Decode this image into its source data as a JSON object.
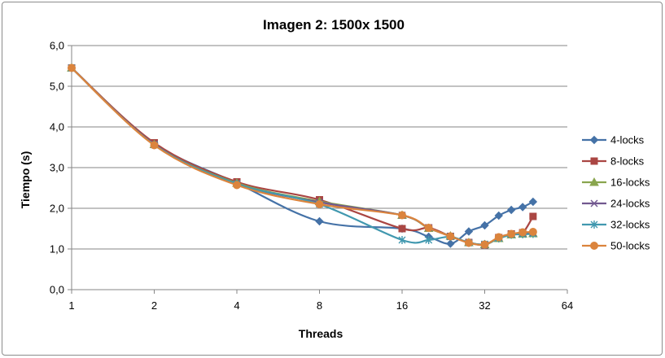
{
  "chart_data": {
    "type": "line",
    "title": "Imagen 2: 1500x 1500",
    "xlabel": "Threads",
    "ylabel": "Tiempo (s)",
    "x_scale": "log2",
    "xlim": [
      1,
      64
    ],
    "ylim": [
      0,
      6
    ],
    "x_ticks": [
      "1",
      "2",
      "4",
      "8",
      "16",
      "32",
      "64"
    ],
    "y_ticks": [
      "0,0",
      "1,0",
      "2,0",
      "3,0",
      "4,0",
      "5,0",
      "6,0"
    ],
    "grid": "horizontal",
    "legend_position": "right",
    "x": [
      1,
      2,
      4,
      8,
      16,
      20,
      24,
      28,
      32,
      36,
      40,
      44,
      48
    ],
    "series": [
      {
        "name": "4-locks",
        "color": "#4572A7",
        "marker": "diamond",
        "values": [
          5.45,
          3.6,
          2.62,
          1.68,
          1.5,
          1.3,
          1.13,
          1.43,
          1.58,
          1.82,
          1.96,
          2.03,
          2.16
        ]
      },
      {
        "name": "8-locks",
        "color": "#AA4643",
        "marker": "square",
        "values": [
          5.45,
          3.61,
          2.65,
          2.21,
          1.5,
          1.52,
          1.31,
          1.16,
          1.1,
          1.28,
          1.37,
          1.4,
          1.8
        ]
      },
      {
        "name": "16-locks",
        "color": "#89A54E",
        "marker": "triangle",
        "values": [
          5.45,
          3.57,
          2.62,
          2.17,
          1.83,
          1.51,
          1.32,
          1.16,
          1.11,
          1.26,
          1.35,
          1.37,
          1.38
        ]
      },
      {
        "name": "24-locks",
        "color": "#71588F",
        "marker": "x",
        "values": [
          5.45,
          3.57,
          2.6,
          2.15,
          1.83,
          1.52,
          1.31,
          1.16,
          1.11,
          1.27,
          1.36,
          1.38,
          1.39
        ]
      },
      {
        "name": "32-locks",
        "color": "#4198AF",
        "marker": "asterisk",
        "values": [
          5.45,
          3.56,
          2.6,
          2.1,
          1.22,
          1.22,
          1.3,
          1.15,
          1.12,
          1.26,
          1.35,
          1.36,
          1.37
        ]
      },
      {
        "name": "50-locks",
        "color": "#DB843D",
        "marker": "circle",
        "values": [
          5.45,
          3.55,
          2.57,
          2.1,
          1.83,
          1.52,
          1.31,
          1.15,
          1.11,
          1.29,
          1.37,
          1.41,
          1.42
        ]
      }
    ]
  }
}
